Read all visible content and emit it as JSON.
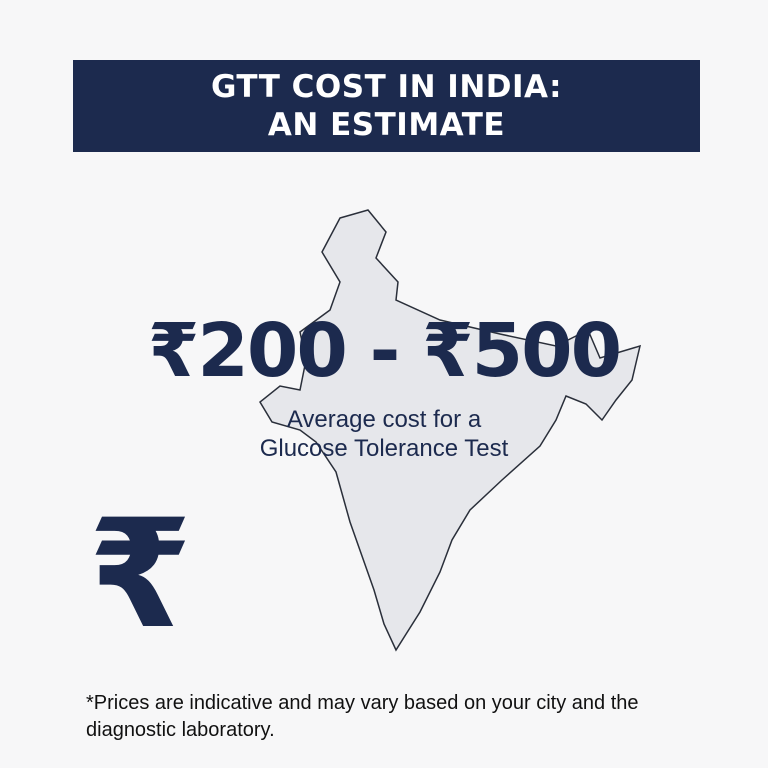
{
  "header": {
    "line1": "GTT COST IN INDIA:",
    "line2": "AN ESTIMATE"
  },
  "price_range": "₹200 - ₹500",
  "subtitle": {
    "line1": "Average cost for a",
    "line2": "Glucose Tolerance Test"
  },
  "icon": {
    "symbol": "₹",
    "name": "rupee-icon"
  },
  "footnote": "*Prices are indicative and may vary based on your city and the diagnostic laboratory.",
  "colors": {
    "navy": "#1c2a4e",
    "map_fill": "#e6e7eb",
    "background": "#f7f7f8"
  }
}
